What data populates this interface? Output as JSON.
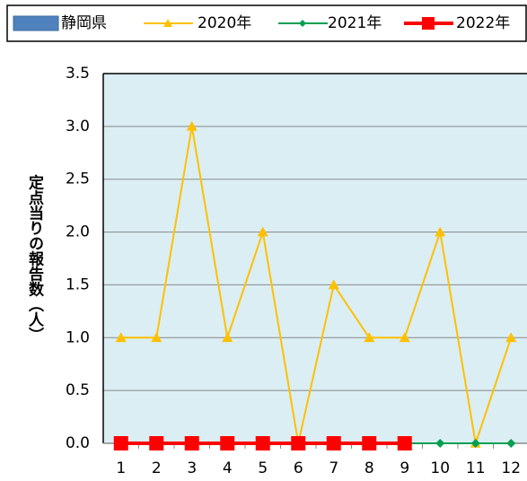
{
  "chart_data": {
    "type": "line",
    "ylabel": "定点当りの報告数（人）",
    "categories": [
      "1",
      "2",
      "3",
      "4",
      "5",
      "6",
      "7",
      "8",
      "9",
      "10",
      "11",
      "12"
    ],
    "series": [
      {
        "name": "静岡県",
        "type": "bar",
        "color": "#4f81bd",
        "values": [
          null,
          null,
          null,
          null,
          null,
          null,
          null,
          null,
          null,
          null,
          null,
          null
        ]
      },
      {
        "name": "2020年",
        "color": "#ffc000",
        "marker": "triangle",
        "values": [
          1,
          1,
          3,
          1,
          2,
          0,
          1.5,
          1,
          1,
          2,
          0,
          1
        ]
      },
      {
        "name": "2021年",
        "color": "#00a050",
        "marker": "diamond",
        "values": [
          0,
          0,
          0,
          0,
          0,
          0,
          0,
          0,
          0,
          0,
          0,
          0
        ]
      },
      {
        "name": "2022年",
        "color": "#ff0000",
        "marker": "square",
        "values": [
          0,
          0,
          0,
          0,
          0,
          0,
          0,
          0,
          0,
          null,
          null,
          null
        ]
      }
    ],
    "ylim": [
      0,
      3.5
    ],
    "yticks": [
      {
        "value": 0,
        "label": "0.0"
      },
      {
        "value": 0.5,
        "label": "0.5"
      },
      {
        "value": 1,
        "label": "1.0"
      },
      {
        "value": 1.5,
        "label": "1.5"
      },
      {
        "value": 2,
        "label": "2.0"
      },
      {
        "value": 2.5,
        "label": "2.5"
      },
      {
        "value": 3,
        "label": "3.0"
      },
      {
        "value": 3.5,
        "label": "3.5"
      }
    ],
    "grid": true,
    "legend": "top"
  }
}
